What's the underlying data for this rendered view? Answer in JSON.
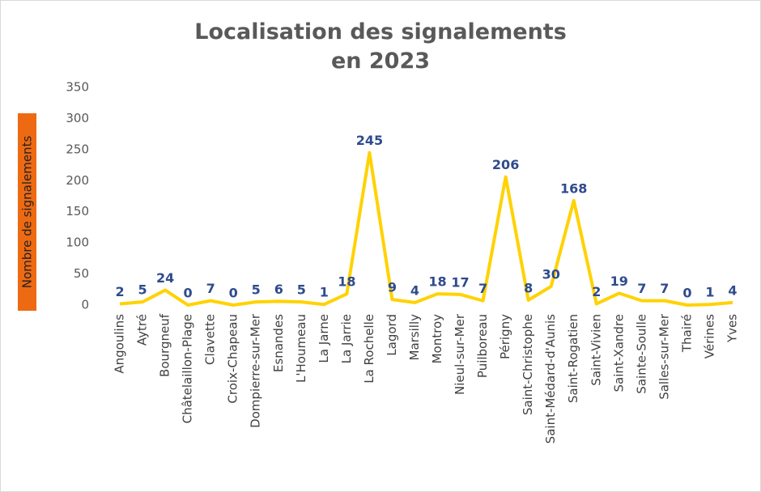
{
  "chart_data": {
    "type": "line",
    "title": "Localisation des signalements\nen 2023",
    "y_label": "Nombre de signalements",
    "categories": [
      "Angoulins",
      "Aytré",
      "Bourgneuf",
      "Châtelaillon-Plage",
      "Clavette",
      "Croix-Chapeau",
      "Dompierre-sur-Mer",
      "Esnandes",
      "L'Houmeau",
      "La Jarne",
      "La Jarrie",
      "La Rochelle",
      "Lagord",
      "Marsilly",
      "Montroy",
      "Nieul-sur-Mer",
      "Puilboreau",
      "Périgny",
      "Saint-Christophe",
      "Saint-Médard-d'Aunis",
      "Saint-Rogatien",
      "Saint-Vivien",
      "Saint-Xandre",
      "Sainte-Soulle",
      "Salles-sur-Mer",
      "Thairé",
      "Vérines",
      "Yves"
    ],
    "values": [
      2,
      5,
      24,
      0,
      7,
      0,
      5,
      6,
      5,
      1,
      18,
      245,
      9,
      4,
      18,
      17,
      7,
      206,
      8,
      30,
      168,
      2,
      19,
      7,
      7,
      0,
      1,
      4
    ],
    "color": "#ffd200",
    "label_color": "#2f4b8c",
    "y_label_box_color": "#ee6a12",
    "ylim": [
      0,
      350
    ],
    "yticks": [
      0,
      50,
      100,
      150,
      200,
      250,
      300,
      350
    ],
    "grid": false
  }
}
